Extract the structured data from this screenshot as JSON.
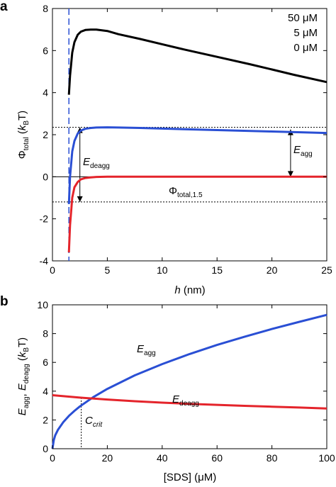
{
  "colors": {
    "black": "#000000",
    "blue": "#2a4fd4",
    "red": "#e4242b"
  },
  "chart_data": [
    {
      "panel": "a",
      "type": "line",
      "xlim": [
        0,
        25
      ],
      "ylim": [
        -4,
        8
      ],
      "xticks": [
        0,
        5,
        10,
        15,
        20,
        25
      ],
      "yticks": [
        -4,
        -2,
        0,
        2,
        4,
        6,
        8
      ],
      "xlabel": {
        "italic": "h",
        "rest": " (nm)"
      },
      "ylabel": {
        "sym": "Φ",
        "sub": "total",
        "mid": " (",
        "ital": "k",
        "sub2": "B",
        "end": "T)"
      },
      "legend_position": "top-right",
      "legend": [
        "50 μM",
        "5 μM",
        "0 μM"
      ],
      "vline_x": 1.5,
      "hline_dotted": [
        2.35,
        -1.2
      ],
      "hline_solid": 0,
      "annotations": {
        "edeagg": {
          "main": "E",
          "sub": "deagg"
        },
        "eagg": {
          "main": "E",
          "sub": "agg"
        },
        "phi": {
          "main": "Φ",
          "sub": "total,1.5"
        }
      },
      "series": [
        {
          "name": "50 μM",
          "color": "#000000",
          "x": [
            1.5,
            1.6,
            1.8,
            2.0,
            2.3,
            2.6,
            3.0,
            3.5,
            4.0,
            5,
            6,
            8,
            10,
            12,
            15,
            18,
            20,
            22,
            25
          ],
          "y": [
            3.9,
            4.8,
            5.9,
            6.4,
            6.75,
            6.9,
            6.98,
            7.0,
            7.0,
            6.93,
            6.78,
            6.55,
            6.3,
            6.05,
            5.7,
            5.35,
            5.1,
            4.85,
            4.5
          ]
        },
        {
          "name": "5 μM",
          "color": "#2a4fd4",
          "x": [
            1.5,
            1.6,
            1.8,
            2.0,
            2.3,
            2.6,
            3.0,
            3.5,
            4.0,
            5,
            6,
            8,
            10,
            15,
            20,
            25
          ],
          "y": [
            -1.3,
            0.0,
            1.2,
            1.7,
            2.05,
            2.2,
            2.28,
            2.32,
            2.34,
            2.35,
            2.34,
            2.32,
            2.29,
            2.22,
            2.15,
            2.08
          ]
        },
        {
          "name": "0 μM",
          "color": "#e4242b",
          "x": [
            1.5,
            1.6,
            1.8,
            2.0,
            2.3,
            2.6,
            3.0,
            3.5,
            4.0,
            5,
            6,
            8,
            10,
            15,
            20,
            25
          ],
          "y": [
            -3.6,
            -2.3,
            -1.0,
            -0.5,
            -0.25,
            -0.12,
            -0.06,
            -0.03,
            -0.01,
            0.0,
            0.0,
            0.0,
            0.0,
            0.0,
            0.0,
            0.0
          ]
        }
      ]
    },
    {
      "panel": "b",
      "type": "line",
      "xlim": [
        0,
        100
      ],
      "ylim": [
        0,
        10
      ],
      "xticks": [
        0,
        20,
        40,
        60,
        80,
        100
      ],
      "yticks": [
        0,
        2,
        4,
        6,
        8,
        10
      ],
      "xlabel": "[SDS] (μM)",
      "ylabel": {
        "e1": "E",
        "s1": "agg",
        "comma": ", ",
        "e2": "E",
        "s2": "deagg",
        "mid": " (",
        "ital": "k",
        "sub": "B",
        "end": "T)"
      },
      "crit": {
        "x": 10.5,
        "y": 3.55,
        "main": "C",
        "sub": "crit"
      },
      "series": [
        {
          "name": "E_agg",
          "label_main": "E",
          "label_sub": "agg",
          "color": "#2a4fd4",
          "x": [
            0,
            0.5,
            1,
            2,
            4,
            6,
            8,
            10,
            15,
            20,
            30,
            40,
            50,
            60,
            70,
            80,
            90,
            100
          ],
          "y": [
            0,
            0.6,
            0.93,
            1.31,
            1.86,
            2.28,
            2.63,
            2.94,
            3.6,
            4.16,
            5.1,
            5.88,
            6.58,
            7.21,
            7.78,
            8.32,
            8.82,
            9.3
          ]
        },
        {
          "name": "E_deagg",
          "label_main": "E",
          "label_sub": "deagg",
          "color": "#e4242b",
          "x": [
            0,
            10,
            20,
            30,
            40,
            50,
            60,
            70,
            80,
            90,
            100
          ],
          "y": [
            3.72,
            3.55,
            3.42,
            3.3,
            3.2,
            3.12,
            3.05,
            2.98,
            2.92,
            2.86,
            2.8
          ]
        }
      ]
    }
  ],
  "panel_labels": [
    "a",
    "b"
  ]
}
